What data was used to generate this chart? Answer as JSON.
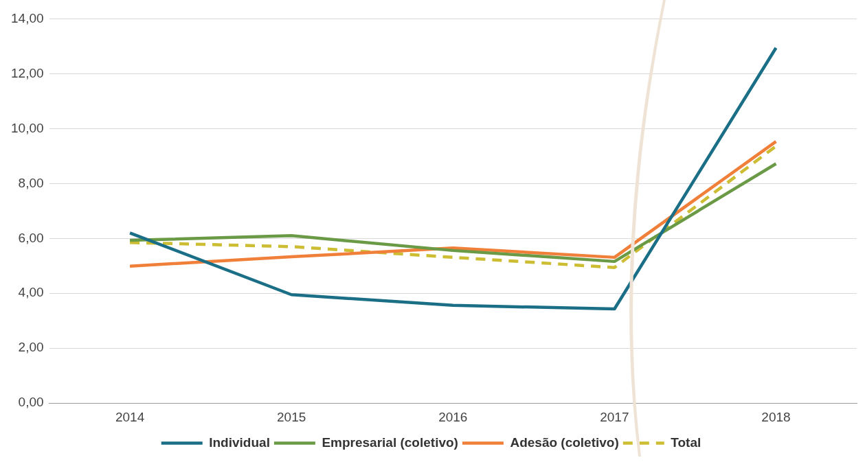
{
  "chart_data": {
    "type": "line",
    "categories": [
      "2014",
      "2015",
      "2016",
      "2017",
      "2018"
    ],
    "series": [
      {
        "name": "Individual",
        "color": "#1a6e86",
        "values": [
          6.2,
          3.95,
          3.56,
          3.43,
          12.94
        ]
      },
      {
        "name": "Empresarial (coletivo)",
        "color": "#6a9a45",
        "values": [
          5.93,
          6.1,
          5.56,
          5.16,
          8.72
        ]
      },
      {
        "name": "Adesão (coletivo)",
        "color": "#f07f3a",
        "values": [
          4.99,
          5.33,
          5.65,
          5.31,
          9.53
        ]
      },
      {
        "name": "Total",
        "color": "#cdbd32",
        "values": [
          5.85,
          5.7,
          5.31,
          4.94,
          9.36
        ],
        "line_style": "dashed"
      }
    ],
    "ylim": [
      0,
      14
    ],
    "yticks": [
      {
        "value": 0,
        "label": "0,00"
      },
      {
        "value": 2,
        "label": "2,00"
      },
      {
        "value": 4,
        "label": "4,00"
      },
      {
        "value": 6,
        "label": "6,00"
      },
      {
        "value": 8,
        "label": "8,00"
      },
      {
        "value": 10,
        "label": "10,00"
      },
      {
        "value": 12,
        "label": "12,00"
      },
      {
        "value": 14,
        "label": "14,00"
      }
    ],
    "grid": "y",
    "legend": "bottom",
    "marker": "none"
  }
}
